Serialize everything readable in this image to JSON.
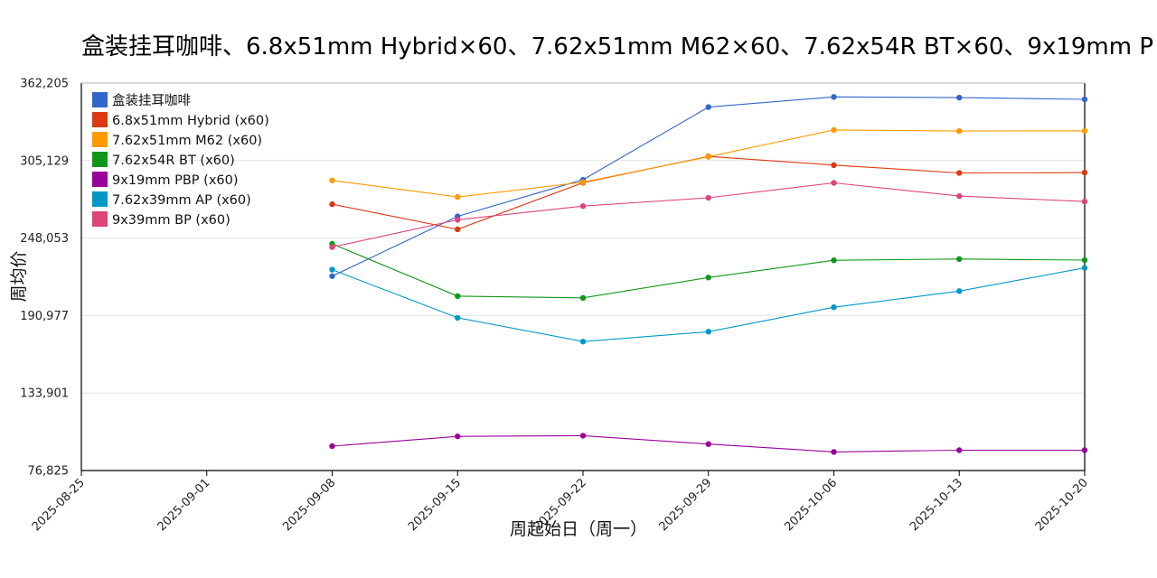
{
  "chart_data": {
    "type": "line",
    "title": "盒装挂耳咖啡、6.8x51mm Hybrid×60、7.62x51mm M62×60、7.62x54R BT×60、9x19mm P",
    "xlabel": "周起始日（周一）",
    "ylabel": "周均价",
    "x": [
      "2025-08-25",
      "2025-09-01",
      "2025-09-08",
      "2025-09-15",
      "2025-09-22",
      "2025-09-29",
      "2025-10-06",
      "2025-10-13",
      "2025-10-20"
    ],
    "ylim": [
      76825,
      362205
    ],
    "yticks": [
      "76,825",
      "133,901",
      "190,977",
      "248,053",
      "305,129",
      "362,205"
    ],
    "grid": true,
    "legend_position": "top-left",
    "series": [
      {
        "name": "盒装挂耳咖啡",
        "color": "#3366cc",
        "values": [
          null,
          null,
          220000,
          264000,
          291000,
          344500,
          352000,
          351500,
          350200
        ]
      },
      {
        "name": "6.8x51mm Hybrid (x60)",
        "color": "#dc3912",
        "values": [
          null,
          null,
          273000,
          254500,
          288800,
          308200,
          301800,
          296000,
          296300
        ]
      },
      {
        "name": "7.62x51mm M62 (x60)",
        "color": "#ff9900",
        "values": [
          null,
          null,
          290500,
          278300,
          289200,
          307900,
          327700,
          326900,
          327000
        ]
      },
      {
        "name": "7.62x54R BT (x60)",
        "color": "#109618",
        "values": [
          null,
          null,
          243800,
          205300,
          204000,
          219000,
          231700,
          232600,
          231800
        ]
      },
      {
        "name": "9x19mm PBP (x60)",
        "color": "#990099",
        "values": [
          null,
          null,
          94800,
          102000,
          102500,
          96300,
          90500,
          91800,
          91800
        ]
      },
      {
        "name": "7.62x39mm AP (x60)",
        "color": "#0099c6",
        "values": [
          null,
          null,
          224800,
          189300,
          171800,
          179100,
          197100,
          209000,
          226100
        ]
      },
      {
        "name": "9x39mm BP (x60)",
        "color": "#dd4477",
        "values": [
          null,
          null,
          241400,
          261500,
          271600,
          277700,
          288700,
          279000,
          275000
        ]
      }
    ]
  }
}
